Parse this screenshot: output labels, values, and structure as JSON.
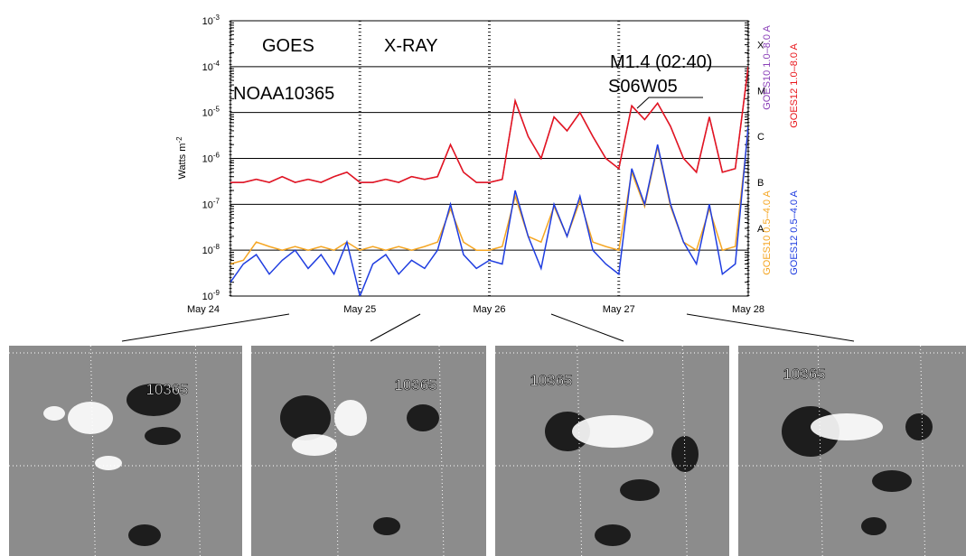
{
  "chart_data": {
    "type": "line",
    "log_y": true,
    "grid": true,
    "y_label": "Watts m",
    "y_label_exponent": "-2",
    "annotations": [
      "GOES",
      "X-RAY",
      "NOAA10365",
      "M1.4 (02:40)",
      "S06W05"
    ],
    "xlim": [
      24,
      28
    ],
    "xticks": [
      {
        "value": 24,
        "label": "May 24"
      },
      {
        "value": 25,
        "label": "May 25"
      },
      {
        "value": 26,
        "label": "May 26"
      },
      {
        "value": 27,
        "label": "May 27"
      },
      {
        "value": 28,
        "label": "May 28"
      }
    ],
    "ylim": [
      1e-09,
      0.001
    ],
    "yticks": [
      {
        "value": 1e-09,
        "label": "10",
        "exponent": "-9"
      },
      {
        "value": 1e-08,
        "label": "10",
        "exponent": "-8"
      },
      {
        "value": 1e-07,
        "label": "10",
        "exponent": "-7"
      },
      {
        "value": 1e-06,
        "label": "10",
        "exponent": "-6"
      },
      {
        "value": 1e-05,
        "label": "10",
        "exponent": "-5"
      },
      {
        "value": 0.0001,
        "label": "10",
        "exponent": "-4"
      },
      {
        "value": 0.001,
        "label": "10",
        "exponent": "-3"
      }
    ],
    "y2lim": [
      1e-09,
      0.001
    ],
    "y2ticks": [
      {
        "value": 3e-08,
        "label": "A"
      },
      {
        "value": 3e-07,
        "label": "B"
      },
      {
        "value": 3e-06,
        "label": "C"
      },
      {
        "value": 3e-05,
        "label": "M"
      },
      {
        "value": 0.0003,
        "label": "X"
      }
    ],
    "x": [
      24.0,
      24.1,
      24.2,
      24.3,
      24.4,
      24.5,
      24.6,
      24.7,
      24.8,
      24.9,
      25.0,
      25.1,
      25.2,
      25.3,
      25.4,
      25.5,
      25.6,
      25.7,
      25.8,
      25.9,
      26.0,
      26.1,
      26.2,
      26.3,
      26.4,
      26.5,
      26.6,
      26.7,
      26.8,
      26.9,
      27.0,
      27.1,
      27.2,
      27.3,
      27.4,
      27.5,
      27.6,
      27.7,
      27.8,
      27.9,
      28.0
    ],
    "series": [
      {
        "name": "GOES10 1.0–8.0 A",
        "color": "#8a3fb8",
        "values": [
          3e-07,
          3e-07,
          3.5e-07,
          3e-07,
          4e-07,
          3e-07,
          3.5e-07,
          3e-07,
          4e-07,
          5e-07,
          3e-07,
          3e-07,
          3.5e-07,
          3e-07,
          4e-07,
          3.5e-07,
          4e-07,
          2e-06,
          5e-07,
          3e-07,
          3e-07,
          3.5e-07,
          1.8e-05,
          3e-06,
          1e-06,
          8e-06,
          4e-06,
          1e-05,
          3e-06,
          1e-06,
          6e-07,
          1.4e-05,
          7e-06,
          1.6e-05,
          5e-06,
          1e-06,
          5e-07,
          8e-06,
          5e-07,
          6e-07,
          0.0001
        ]
      },
      {
        "name": "GOES12 1.0–8.0 A",
        "color": "#e8161b",
        "values": [
          3e-07,
          3e-07,
          3.5e-07,
          3e-07,
          4e-07,
          3e-07,
          3.5e-07,
          3e-07,
          4e-07,
          5e-07,
          3e-07,
          3e-07,
          3.5e-07,
          3e-07,
          4e-07,
          3.5e-07,
          4e-07,
          2e-06,
          5e-07,
          3e-07,
          3e-07,
          3.5e-07,
          1.8e-05,
          3e-06,
          1e-06,
          8e-06,
          4e-06,
          1e-05,
          3e-06,
          1e-06,
          6e-07,
          1.4e-05,
          7e-06,
          1.6e-05,
          5e-06,
          1e-06,
          5e-07,
          8e-06,
          5e-07,
          6e-07,
          0.0001
        ]
      },
      {
        "name": "GOES10 0.5–4.0 A",
        "color": "#f5a623",
        "values": [
          5e-09,
          6e-09,
          1.5e-08,
          1.2e-08,
          1e-08,
          1.2e-08,
          1e-08,
          1.2e-08,
          1e-08,
          1.5e-08,
          1e-08,
          1.2e-08,
          1e-08,
          1.2e-08,
          1e-08,
          1.2e-08,
          1.5e-08,
          8e-08,
          1.5e-08,
          1e-08,
          1e-08,
          1.2e-08,
          1.5e-07,
          2e-08,
          1.5e-08,
          9e-08,
          2e-08,
          1.2e-07,
          1.5e-08,
          1.2e-08,
          1e-08,
          5e-07,
          9e-08,
          1.8e-06,
          9e-08,
          1.5e-08,
          1e-08,
          8e-08,
          1e-08,
          1.2e-08,
          4e-06
        ]
      },
      {
        "name": "GOES12 0.5–4.0 A",
        "color": "#1f3de0",
        "values": [
          2e-09,
          5e-09,
          8e-09,
          3e-09,
          6e-09,
          1e-08,
          4e-09,
          8e-09,
          3e-09,
          1.5e-08,
          1e-09,
          5e-09,
          8e-09,
          3e-09,
          6e-09,
          4e-09,
          1e-08,
          1e-07,
          8e-09,
          4e-09,
          6e-09,
          5e-09,
          2e-07,
          2e-08,
          4e-09,
          1e-07,
          2e-08,
          1.5e-07,
          1e-08,
          5e-09,
          3e-09,
          6e-07,
          1e-07,
          2e-06,
          1e-07,
          1.5e-08,
          5e-09,
          1e-07,
          3e-09,
          5e-09,
          5e-06
        ]
      }
    ]
  },
  "panels": [
    {
      "label": "10365"
    },
    {
      "label": "10365"
    },
    {
      "label": "10365"
    },
    {
      "label": "10365"
    }
  ]
}
